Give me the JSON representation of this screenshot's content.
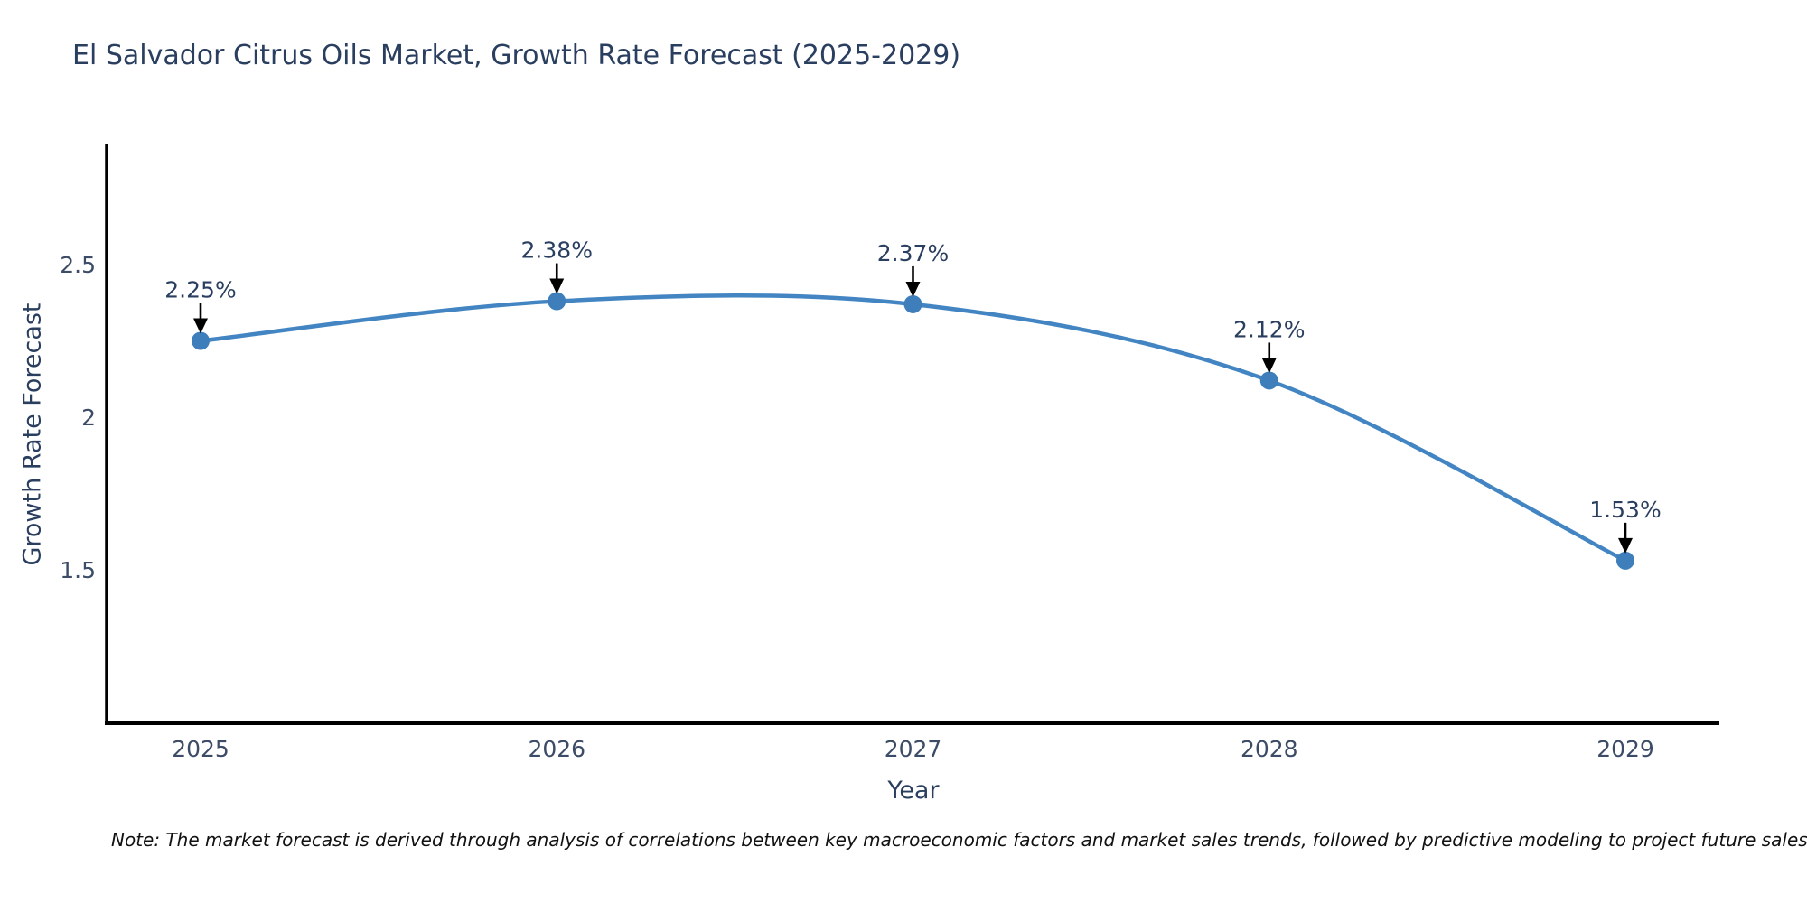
{
  "title": "El Salvador Citrus Oils Market, Growth Rate Forecast (2025-2029)",
  "note": "Note: The market forecast is derived through analysis of correlations between key macroeconomic factors and market sales trends, followed by predictive modeling to project future sales",
  "chart_data": {
    "type": "line",
    "title": "El Salvador Citrus Oils Market, Growth Rate Forecast (2025-2029)",
    "xlabel": "Year",
    "ylabel": "Growth Rate Forecast",
    "categories": [
      "2025",
      "2026",
      "2027",
      "2028",
      "2029"
    ],
    "series": [
      {
        "name": "Growth Rate Forecast",
        "values": [
          2.25,
          2.38,
          2.37,
          2.12,
          1.53
        ]
      }
    ],
    "point_labels": [
      "2.25%",
      "2.38%",
      "2.37%",
      "2.12%",
      "1.53%"
    ],
    "y_ticks": [
      2.5,
      2,
      1.5
    ],
    "y_tick_labels": [
      "2.5",
      "2",
      "1.5"
    ],
    "ylim": [
      0.99,
      2.92
    ],
    "grid": false,
    "legend_position": "none",
    "line_shape": "spline",
    "annotations_have_arrows": true,
    "colors": {
      "line": "#4285c2",
      "marker": "#3d7ebb",
      "axis_line": "#000000",
      "tick_label": "#3d4c66",
      "title_text": "#2a3f5f",
      "annotation_text": "#2a3f5f",
      "arrow": "#000000",
      "note_text": "#111111",
      "background": "#ffffff"
    }
  }
}
